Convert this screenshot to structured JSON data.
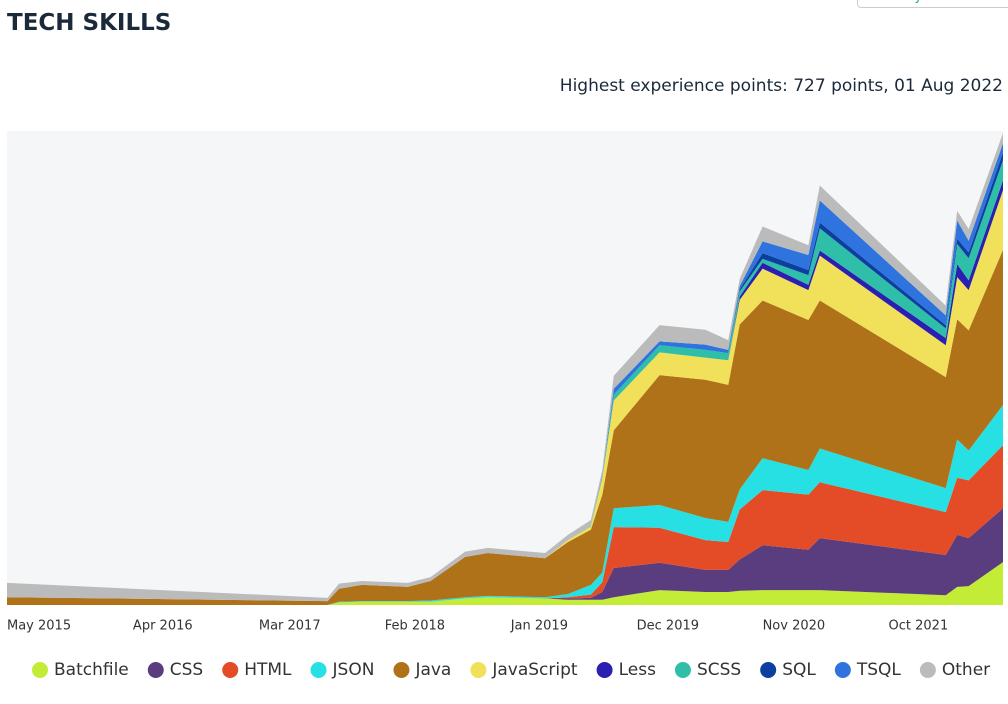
{
  "button": "Add to your",
  "chart_data": {
    "type": "stacked-area",
    "title": "TECH SKILLS",
    "subtitle": "Highest experience points: 727 points, 01 Aug 2022",
    "x": [
      "May 2015",
      "Sep 2017",
      "Oct 2017",
      "Dec 2017",
      "Apr 2018",
      "Jun 2018",
      "Sep 2018",
      "Nov 2018",
      "Apr 2019",
      "Jun 2019",
      "Aug 2019",
      "Sep 2019",
      "Oct 2019",
      "Feb 2020",
      "Jun 2020",
      "Aug 2020",
      "Sep 2020",
      "Nov 2020",
      "Mar 2021",
      "Apr 2021",
      "Mar 2022",
      "Apr 2022",
      "May 2022",
      "Aug 2022"
    ],
    "xlim": [
      "May 2015",
      "Aug 2022"
    ],
    "xticks": [
      "May 2015",
      "Apr 2016",
      "Mar 2017",
      "Feb 2018",
      "Jan 2019",
      "Dec 2019",
      "Nov 2020",
      "Oct 2021"
    ],
    "ylim": [
      0,
      730
    ],
    "legend": "bottom",
    "series": [
      {
        "name": "Batchfile",
        "color": "#c2ec36",
        "values": [
          0,
          0,
          4,
          5,
          5,
          5,
          10,
          12,
          10,
          8,
          8,
          8,
          12,
          23,
          20,
          20,
          22,
          23,
          23,
          23,
          15,
          28,
          29,
          66
        ]
      },
      {
        "name": "CSS",
        "color": "#5a3d7f",
        "values": [
          0,
          0,
          0,
          0,
          0,
          0,
          0,
          0,
          0,
          2,
          3,
          12,
          45,
          42,
          34,
          34,
          48,
          69,
          62,
          80,
          62,
          80,
          74,
          83
        ]
      },
      {
        "name": "HTML",
        "color": "#e34c26",
        "values": [
          0,
          0,
          0,
          0,
          0,
          0,
          0,
          0,
          0,
          2,
          5,
          15,
          63,
          54,
          46,
          43,
          77,
          85,
          85,
          86,
          66,
          88,
          89,
          97
        ]
      },
      {
        "name": "JSON",
        "color": "#27e0e3",
        "values": [
          0,
          0,
          1,
          1,
          1,
          2,
          2,
          2,
          2,
          5,
          15,
          15,
          29,
          35,
          34,
          31,
          31,
          49,
          38,
          52,
          37,
          59,
          46,
          62
        ]
      },
      {
        "name": "Java",
        "color": "#b07219",
        "values": [
          12,
          6,
          20,
          25,
          22,
          30,
          62,
          66,
          60,
          80,
          85,
          120,
          120,
          200,
          213,
          211,
          254,
          243,
          231,
          228,
          171,
          185,
          185,
          239
        ]
      },
      {
        "name": "JavaScript",
        "color": "#f1e05a",
        "values": [
          0,
          0,
          0,
          0,
          0,
          0,
          0,
          0,
          0,
          3,
          5,
          25,
          46,
          35,
          34,
          38,
          38,
          49,
          46,
          69,
          49,
          65,
          62,
          92
        ]
      },
      {
        "name": "Less",
        "color": "#2a1fb0",
        "values": [
          0,
          0,
          0,
          0,
          0,
          0,
          0,
          0,
          0,
          0,
          0,
          0,
          0,
          0,
          0,
          0,
          5,
          9,
          8,
          8,
          11,
          20,
          15,
          15
        ]
      },
      {
        "name": "SCSS",
        "color": "#2fbfa8",
        "values": [
          0,
          0,
          0,
          0,
          0,
          0,
          0,
          0,
          0,
          0,
          1,
          2,
          9,
          11,
          12,
          11,
          8,
          6,
          15,
          34,
          15,
          31,
          34,
          31
        ]
      },
      {
        "name": "SQL",
        "color": "#0d3fa0",
        "values": [
          0,
          0,
          0,
          0,
          0,
          0,
          0,
          0,
          0,
          0,
          0,
          0,
          0,
          0,
          0,
          0,
          3,
          9,
          8,
          9,
          5,
          8,
          9,
          12
        ]
      },
      {
        "name": "TSQL",
        "color": "#2e73de",
        "values": [
          0,
          0,
          0,
          0,
          0,
          0,
          0,
          0,
          0,
          0,
          0,
          2,
          9,
          6,
          8,
          5,
          5,
          18,
          23,
          34,
          15,
          28,
          18,
          14
        ]
      },
      {
        "name": "Other",
        "color": "#bbbbbb",
        "values": [
          22,
          5,
          8,
          6,
          6,
          6,
          8,
          8,
          8,
          8,
          9,
          9,
          20,
          25,
          23,
          15,
          11,
          23,
          15,
          23,
          15,
          15,
          18,
          16
        ]
      }
    ]
  }
}
